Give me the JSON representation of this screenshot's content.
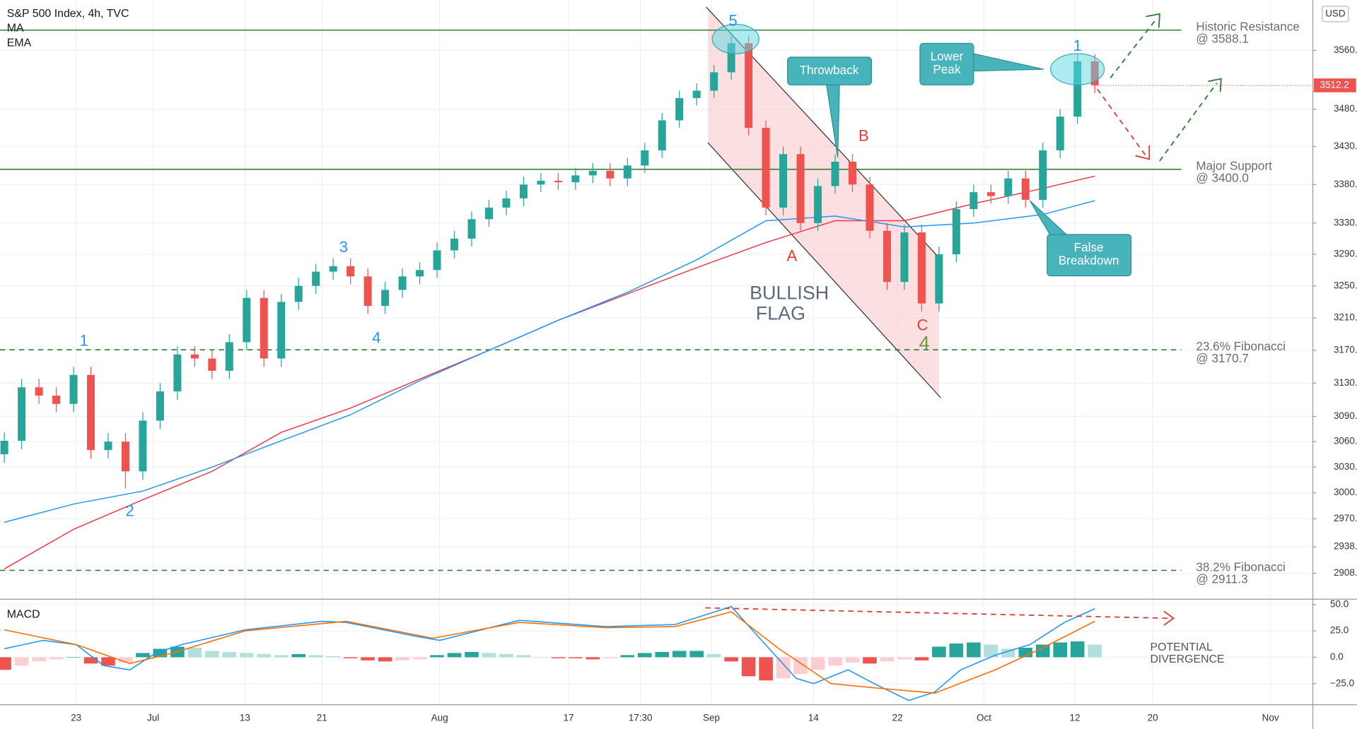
{
  "chart_data": {
    "type": "candlestick",
    "title": "S&P 500 Index, 4h, TVC",
    "currency": "USD",
    "log_scale": true,
    "grid": true,
    "xlim": [
      -0.25,
      75.6
    ],
    "xticks": [
      {
        "value": 4.15,
        "label": "23"
      },
      {
        "value": 8.6,
        "label": "Jul"
      },
      {
        "value": 13.9,
        "label": "13"
      },
      {
        "value": 18.35,
        "label": "21"
      },
      {
        "value": 25.15,
        "label": "Aug"
      },
      {
        "value": 32.6,
        "label": "17"
      },
      {
        "value": 36.75,
        "label": "17:30"
      },
      {
        "value": 40.85,
        "label": "Sep"
      },
      {
        "value": 46.75,
        "label": "14"
      },
      {
        "value": 51.6,
        "label": "22"
      },
      {
        "value": 56.6,
        "label": "Oct"
      },
      {
        "value": 61.85,
        "label": "12"
      },
      {
        "value": 66.35,
        "label": "20"
      },
      {
        "value": 73.15,
        "label": "Nov"
      }
    ],
    "ylim": [
      2879,
      3630
    ],
    "yticks": [
      {
        "value": 3560,
        "label": "3560.0"
      },
      {
        "value": 3480,
        "label": "3480.0"
      },
      {
        "value": 3430,
        "label": "3430.0"
      },
      {
        "value": 3380,
        "label": "3380.0"
      },
      {
        "value": 3330,
        "label": "3330.0"
      },
      {
        "value": 3290,
        "label": "3290.0"
      },
      {
        "value": 3250,
        "label": "3250.0"
      },
      {
        "value": 3210,
        "label": "3210.0"
      },
      {
        "value": 3170,
        "label": "3170.0"
      },
      {
        "value": 3130,
        "label": "3130.0"
      },
      {
        "value": 3090,
        "label": "3090.0"
      },
      {
        "value": 3060,
        "label": "3060.0"
      },
      {
        "value": 3030,
        "label": "3030.0"
      },
      {
        "value": 3000,
        "label": "3000.0"
      },
      {
        "value": 2970,
        "label": "2970.0"
      },
      {
        "value": 2938,
        "label": "2938.0"
      },
      {
        "value": 2908,
        "label": "2908.0"
      }
    ],
    "candles": {
      "up_color": "#26a69a",
      "down_color": "#ef5350",
      "open": [
        3045,
        3061,
        3125,
        3115,
        3105,
        3140,
        3050,
        3060,
        3025,
        3085,
        3120,
        3165,
        3160,
        3145,
        3180,
        3235,
        3160,
        3230,
        3250,
        3268,
        3275,
        3262,
        3225,
        3245,
        3262,
        3270,
        3295,
        3310,
        3335,
        3350,
        3362,
        3380,
        3385,
        3383,
        3392,
        3398,
        3388,
        3405,
        3425,
        3465,
        3495,
        3505,
        3530,
        3570,
        3455,
        3350,
        3420,
        3330,
        3378,
        3410,
        3380,
        3320,
        3255,
        3318,
        3228,
        3290,
        3348,
        3370,
        3365,
        3388,
        3360,
        3425,
        3470,
        3545
      ],
      "high": [
        3071,
        3135,
        3135,
        3125,
        3150,
        3150,
        3070,
        3070,
        3095,
        3130,
        3175,
        3175,
        3170,
        3190,
        3245,
        3245,
        3240,
        3260,
        3278,
        3285,
        3285,
        3272,
        3255,
        3272,
        3280,
        3305,
        3320,
        3345,
        3360,
        3372,
        3390,
        3395,
        3395,
        3402,
        3408,
        3408,
        3415,
        3435,
        3475,
        3505,
        3515,
        3540,
        3580,
        3580,
        3465,
        3430,
        3430,
        3388,
        3420,
        3420,
        3390,
        3330,
        3328,
        3328,
        3300,
        3358,
        3380,
        3380,
        3398,
        3398,
        3435,
        3480,
        3555,
        3555
      ],
      "low": [
        3035,
        3051,
        3105,
        3095,
        3095,
        3040,
        3040,
        3005,
        3015,
        3075,
        3110,
        3150,
        3135,
        3135,
        3170,
        3150,
        3150,
        3220,
        3240,
        3258,
        3252,
        3215,
        3215,
        3235,
        3252,
        3260,
        3285,
        3300,
        3325,
        3340,
        3352,
        3370,
        3373,
        3373,
        3382,
        3378,
        3378,
        3395,
        3415,
        3455,
        3485,
        3495,
        3520,
        3445,
        3340,
        3340,
        3320,
        3320,
        3368,
        3370,
        3310,
        3245,
        3245,
        3218,
        3218,
        3280,
        3338,
        3355,
        3355,
        3350,
        3350,
        3415,
        3460,
        3502
      ],
      "close": [
        3061,
        3125,
        3115,
        3105,
        3140,
        3050,
        3060,
        3025,
        3085,
        3120,
        3165,
        3160,
        3145,
        3180,
        3235,
        3160,
        3230,
        3250,
        3268,
        3275,
        3262,
        3225,
        3245,
        3262,
        3270,
        3295,
        3310,
        3335,
        3350,
        3362,
        3380,
        3385,
        3383,
        3392,
        3398,
        3388,
        3405,
        3425,
        3465,
        3495,
        3505,
        3530,
        3570,
        3455,
        3350,
        3420,
        3330,
        3378,
        3410,
        3380,
        3320,
        3255,
        3318,
        3228,
        3290,
        3348,
        3370,
        3365,
        3388,
        3360,
        3425,
        3470,
        3545,
        3512.2
      ]
    },
    "series": [
      {
        "name": "MA",
        "color": "#f23645",
        "x": [
          0,
          4,
          8,
          12,
          16,
          20,
          24,
          28,
          32,
          36,
          40,
          44,
          48,
          52,
          56,
          60,
          63
        ],
        "values": [
          2913,
          2958,
          2992,
          3025,
          3071,
          3100,
          3135,
          3170,
          3207,
          3240,
          3273,
          3305,
          3333,
          3333,
          3355,
          3375,
          3391
        ]
      },
      {
        "name": "EMA",
        "color": "#2196f3",
        "x": [
          0,
          4,
          8,
          12,
          16,
          20,
          24,
          28,
          32,
          36,
          40,
          44,
          48,
          52,
          56,
          60,
          63
        ],
        "values": [
          2966,
          2987,
          3002,
          3030,
          3061,
          3092,
          3133,
          3170,
          3207,
          3242,
          3283,
          3333,
          3339,
          3325,
          3330,
          3341,
          3359
        ]
      }
    ],
    "levels": [
      {
        "value": 3588.1,
        "label": "Historic Resistance",
        "sublabel": "@ 3588.1",
        "dashed": false,
        "color": "#2e7d32"
      },
      {
        "value": 3400.0,
        "label": "Major Support",
        "sublabel": "@ 3400.0",
        "dashed": false,
        "color": "#2e7d32"
      },
      {
        "value": 3170.7,
        "label": "23.6% Fibonacci",
        "sublabel": "@ 3170.7",
        "dashed": true,
        "color": "#2e7d32"
      },
      {
        "value": 2911.3,
        "label": "38.2% Fibonacci",
        "sublabel": "@ 2911.3",
        "dashed": true,
        "color": "#2e7d32"
      }
    ],
    "annotations": [
      {
        "text": "5",
        "color": "#2196f3"
      },
      {
        "text": "1",
        "color": "#2196f3"
      },
      {
        "text": "2",
        "color": "#2196f3"
      },
      {
        "text": "3",
        "color": "#2196f3"
      },
      {
        "text": "4",
        "color": "#2196f3"
      },
      {
        "text": "A",
        "color": "#e53935"
      },
      {
        "text": "B",
        "color": "#e53935"
      },
      {
        "text": "C",
        "color": "#e53935"
      },
      {
        "text": "4",
        "color": "#6a9a3a"
      },
      {
        "text": "1",
        "color": "#2196f3"
      }
    ],
    "callouts": [
      {
        "lines": [
          "Throwback"
        ]
      },
      {
        "lines": [
          "Lower",
          "Peak"
        ]
      },
      {
        "lines": [
          "False",
          "Breakdown"
        ]
      }
    ],
    "flag_label": [
      "BULLISH",
      "FLAG"
    ],
    "macd": {
      "title": "MACD",
      "ylim": [
        -45,
        55
      ],
      "yticks": [
        {
          "value": 50,
          "label": "50.0"
        },
        {
          "value": 25,
          "label": "25.0"
        },
        {
          "value": 0,
          "label": "0.0"
        },
        {
          "value": -25,
          "label": "−25.0"
        }
      ],
      "histogram": {
        "colors": {
          "rise_pos": "#26a69a",
          "fall_pos": "#b2dfdb",
          "fall_neg": "#ef5350",
          "rise_neg": "#ffcdd2"
        },
        "values": [
          -12,
          -8,
          -4,
          -2,
          0,
          -6,
          -8,
          -5,
          4,
          8,
          10,
          9,
          6,
          5,
          4,
          3,
          2,
          3,
          2,
          1,
          -1,
          -3,
          -4,
          -3,
          -2,
          2,
          4,
          5,
          4,
          3,
          2,
          0,
          -1,
          -1,
          -2,
          -1,
          2,
          4,
          5,
          6,
          6,
          3,
          -4,
          -18,
          -22,
          -20,
          -16,
          -12,
          -8,
          -5,
          -6,
          -4,
          -2,
          -3,
          10,
          13,
          14,
          12,
          8,
          9,
          12,
          14,
          15,
          12
        ]
      },
      "series": [
        {
          "color": "#2196f3",
          "x": [
            0,
            2.25,
            4.15,
            5.75,
            7.25,
            8.75,
            10.25,
            13.9,
            18.35,
            19.75,
            23.75,
            25.15,
            29.75,
            34.75,
            38.75,
            42,
            43.75,
            45.75,
            46.75,
            48.75,
            50.25,
            52.25,
            53.75,
            55.25,
            57.25,
            59.25,
            61.25,
            63
          ],
          "values": [
            8,
            16,
            12,
            -8,
            -12,
            4,
            12,
            26,
            34,
            33,
            20,
            16,
            35,
            29,
            31,
            48,
            16,
            -20,
            -25,
            -12,
            -25,
            -41,
            -33,
            -12,
            2,
            12,
            33,
            46
          ]
        },
        {
          "color": "#ff6d00",
          "x": [
            0,
            4.15,
            7.25,
            9.75,
            13.9,
            19.75,
            24.75,
            29.75,
            34.75,
            38.75,
            42,
            44.75,
            47.75,
            50.25,
            53.75,
            57.25,
            59.75,
            63
          ],
          "values": [
            26,
            12,
            -6,
            4,
            25,
            34,
            18,
            33,
            28,
            29,
            43,
            8,
            -25,
            -29,
            -34,
            -12,
            7,
            34
          ]
        }
      ],
      "note": [
        "POTENTIAL",
        "DIVERGENCE"
      ]
    }
  }
}
